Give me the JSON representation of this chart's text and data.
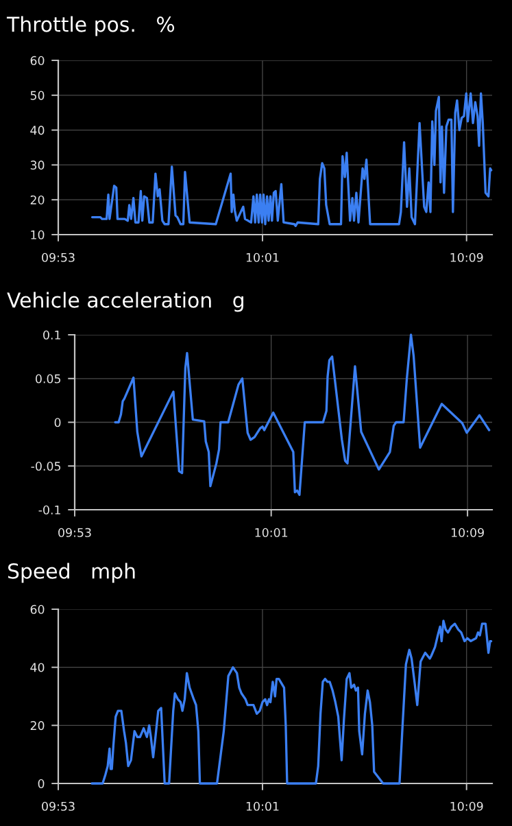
{
  "chart_data": [
    {
      "type": "line",
      "title": "Throttle pos.   %",
      "color": "#3b7ff2",
      "grid": true,
      "xlim": [
        9.8833,
        10.1667
      ],
      "xticks": [
        {
          "value": 9.8833,
          "label": "09:53"
        },
        {
          "value": 10.0167,
          "label": "10:01"
        },
        {
          "value": 10.15,
          "label": "10:09"
        }
      ],
      "ylim": [
        10,
        60
      ],
      "yticks": [
        10,
        20,
        30,
        40,
        50,
        60
      ],
      "x": [
        9.9055,
        9.9108,
        9.9119,
        9.9149,
        9.916,
        9.9168,
        9.9198,
        9.9212,
        9.922,
        9.9267,
        9.9287,
        9.9297,
        9.9309,
        9.9324,
        9.9337,
        9.9357,
        9.9372,
        9.9382,
        9.9394,
        9.9412,
        9.9428,
        9.945,
        9.9468,
        9.9483,
        9.9495,
        9.9513,
        9.9528,
        9.9553,
        9.9575,
        9.9599,
        9.9611,
        9.9632,
        9.965,
        9.9661,
        9.9691,
        9.9862,
        9.9959,
        9.9966,
        9.9977,
        9.9986,
        9.9999,
        10.0041,
        10.0053,
        10.0093,
        10.0108,
        10.0119,
        10.013,
        10.0142,
        10.0152,
        10.0164,
        10.0174,
        10.0185,
        10.0197,
        10.0207,
        10.0219,
        10.0229,
        10.0241,
        10.0253,
        10.0267,
        10.029,
        10.0305,
        10.0375,
        10.0383,
        10.0397,
        10.0531,
        10.0542,
        10.0557,
        10.0571,
        10.0583,
        10.0606,
        10.068,
        10.069,
        10.0705,
        10.0717,
        10.0739,
        10.0754,
        10.0765,
        10.078,
        10.0794,
        10.0821,
        10.0833,
        10.0846,
        10.087,
        10.0955,
        10.1059,
        10.1071,
        10.1092,
        10.1111,
        10.1126,
        10.1141,
        10.1163,
        10.1193,
        10.1223,
        10.1237,
        10.1252,
        10.1264,
        10.1276,
        10.129,
        10.13,
        10.1319,
        10.133,
        10.1339,
        10.1353,
        10.1368,
        10.1383,
        10.1401,
        10.1411,
        10.1426,
        10.1438,
        10.1453,
        10.1468,
        10.1483,
        10.1498,
        10.1508,
        10.1527,
        10.1542,
        10.1557,
        10.1572,
        10.1582,
        10.1594,
        10.1606,
        10.1624,
        10.1643,
        10.1654,
        10.1661
      ],
      "values": [
        15,
        15,
        14.5,
        14.5,
        21.5,
        14.5,
        24,
        23.5,
        14.5,
        14.5,
        14,
        18.5,
        14.5,
        20.5,
        13.5,
        13.5,
        22.5,
        14,
        21,
        20.5,
        13.5,
        13.5,
        27.5,
        21,
        23,
        14,
        13,
        13,
        29.5,
        15.5,
        15,
        13,
        13,
        28,
        13.5,
        13,
        27.5,
        16.5,
        21.5,
        17,
        14,
        18,
        14.5,
        13.5,
        21,
        13.5,
        21.5,
        13.5,
        21.5,
        13.5,
        21.5,
        13,
        21,
        14,
        21,
        14,
        22,
        22.5,
        14,
        24.5,
        13.5,
        13,
        12.5,
        13.5,
        13,
        26,
        30.5,
        29,
        18.5,
        13,
        13,
        32.5,
        26.5,
        33.5,
        14,
        20.5,
        14,
        22,
        13.5,
        29,
        26,
        31.5,
        13,
        13,
        13,
        16.5,
        36.5,
        18,
        29,
        15,
        13,
        42,
        18,
        16.5,
        25,
        16.5,
        42.5,
        30,
        45.5,
        49.5,
        25,
        41,
        22,
        41,
        43,
        43,
        16.5,
        45,
        48.5,
        40,
        43.5,
        44,
        50.5,
        42.5,
        50.5,
        42,
        48,
        44,
        35.5,
        50.5,
        42,
        22,
        21,
        29,
        28.5
      ]
    },
    {
      "type": "line",
      "title": "Vehicle acceleration   g",
      "color": "#3b7ff2",
      "grid": true,
      "xlim": [
        9.8833,
        10.1667
      ],
      "xticks": [
        {
          "value": 9.8833,
          "label": "09:53"
        },
        {
          "value": 10.0167,
          "label": "10:01"
        },
        {
          "value": 10.15,
          "label": "10:09"
        }
      ],
      "ylim": [
        -0.1,
        0.1
      ],
      "yticks": [
        -0.1,
        -0.05,
        0,
        0.05,
        0.1
      ],
      "x": [
        9.9108,
        9.9131,
        9.9147,
        9.9159,
        9.917,
        9.9232,
        9.9258,
        9.9286,
        9.9503,
        9.9542,
        9.9562,
        9.9584,
        9.9596,
        9.9635,
        9.9712,
        9.9723,
        9.9743,
        9.9754,
        9.9795,
        9.9813,
        9.9823,
        9.9875,
        9.9945,
        9.9971,
        10.0007,
        10.0027,
        10.0054,
        10.0092,
        10.0108,
        10.012,
        10.0181,
        10.0317,
        10.0328,
        10.0343,
        10.0359,
        10.0395,
        10.0519,
        10.0542,
        10.055,
        10.0562,
        10.0581,
        10.0647,
        10.0669,
        10.0685,
        10.0736,
        10.0778,
        10.0898,
        10.0973,
        10.0999,
        10.1015,
        10.1066,
        10.1088,
        10.1116,
        10.1134,
        10.1178,
        10.1325,
        10.1464,
        10.1495,
        10.1581,
        10.1647
      ],
      "values": [
        0,
        0,
        0.009,
        0.024,
        0.027,
        0.051,
        -0.011,
        -0.039,
        0.035,
        -0.056,
        -0.058,
        0.062,
        0.079,
        0.003,
        0.001,
        -0.022,
        -0.034,
        -0.073,
        -0.047,
        -0.031,
        0,
        0,
        0.043,
        0.05,
        -0.012,
        -0.02,
        -0.017,
        -0.007,
        -0.005,
        -0.009,
        0.011,
        -0.034,
        -0.08,
        -0.078,
        -0.083,
        0,
        0,
        0.013,
        0.052,
        0.071,
        0.075,
        -0.02,
        -0.044,
        -0.047,
        0.064,
        -0.011,
        -0.054,
        -0.034,
        -0.004,
        0,
        0,
        0.05,
        0.1,
        0.076,
        -0.029,
        0.021,
        -0.001,
        -0.012,
        0.008,
        -0.009
      ]
    },
    {
      "type": "line",
      "title": "Speed   mph",
      "color": "#3b7ff2",
      "grid": true,
      "xlim": [
        9.8833,
        10.1667
      ],
      "xticks": [
        {
          "value": 9.8833,
          "label": "09:53"
        },
        {
          "value": 10.0167,
          "label": "10:01"
        },
        {
          "value": 10.15,
          "label": "10:09"
        }
      ],
      "ylim": [
        0,
        60
      ],
      "yticks": [
        0,
        20,
        40,
        60
      ],
      "x": [
        9.9052,
        9.9123,
        9.9141,
        9.9156,
        9.9168,
        9.9175,
        9.9183,
        9.9193,
        9.9208,
        9.9223,
        9.9245,
        9.9263,
        9.9275,
        9.929,
        9.9308,
        9.9331,
        9.9349,
        9.9367,
        9.9391,
        9.9412,
        9.9427,
        9.9438,
        9.9453,
        9.9468,
        9.9486,
        9.9505,
        9.9528,
        9.9557,
        9.9584,
        9.9595,
        9.9614,
        9.9632,
        9.9644,
        9.9659,
        9.9673,
        9.9691,
        9.9718,
        9.9733,
        9.9748,
        9.9758,
        9.987,
        9.9914,
        9.9944,
        9.9974,
        10.0,
        10.0015,
        10.003,
        10.0056,
        10.007,
        10.0108,
        10.013,
        10.0149,
        10.0167,
        10.0185,
        10.0197,
        10.0209,
        10.0219,
        10.0234,
        10.0249,
        10.0259,
        10.0274,
        10.0308,
        10.0319,
        10.0328,
        10.0516,
        10.0531,
        10.0546,
        10.0561,
        10.0576,
        10.0591,
        10.0606,
        10.0625,
        10.0643,
        10.0662,
        10.0672,
        10.0684,
        10.0699,
        10.0717,
        10.0735,
        10.0747,
        10.0765,
        10.0777,
        10.0791,
        10.0799,
        10.0818,
        10.0836,
        10.0854,
        10.0869,
        10.0884,
        10.0896,
        10.0955,
        10.1062,
        10.1081,
        10.1104,
        10.1126,
        10.1141,
        10.116,
        10.1178,
        10.12,
        10.123,
        10.126,
        10.127,
        10.1294,
        10.1312,
        10.1327,
        10.1337,
        10.1349,
        10.1364,
        10.1379,
        10.1401,
        10.1423,
        10.1446,
        10.1465,
        10.1487,
        10.1505,
        10.1527,
        10.1562,
        10.1575,
        10.1587,
        10.1602,
        10.1624,
        10.1643,
        10.1654,
        10.1661
      ],
      "values": [
        0,
        0,
        3,
        6,
        12,
        5,
        5,
        13,
        23,
        25,
        25,
        18,
        14,
        6,
        8,
        18,
        16,
        16,
        19,
        16,
        20,
        16,
        9,
        16,
        25,
        26,
        0,
        0,
        25,
        31,
        29,
        28,
        25,
        29,
        38,
        33,
        29,
        27,
        18,
        0,
        0,
        18,
        37,
        40,
        38,
        33,
        31,
        29,
        27,
        27,
        24,
        25,
        28,
        29,
        27,
        29,
        28,
        35,
        30,
        36,
        36,
        33,
        20,
        0,
        0,
        6,
        24,
        35,
        36,
        35,
        35,
        32,
        28,
        23,
        16,
        8,
        22,
        36,
        38,
        33,
        34,
        32,
        33,
        18,
        10,
        24,
        32,
        28,
        20,
        4,
        0,
        0,
        19,
        41,
        46,
        43,
        35,
        27,
        42,
        45,
        43,
        44,
        47,
        51,
        54,
        49,
        56,
        53,
        52,
        54,
        55,
        53,
        52,
        49,
        50,
        49,
        50,
        52,
        51,
        55,
        55,
        45,
        49,
        49
      ]
    }
  ]
}
